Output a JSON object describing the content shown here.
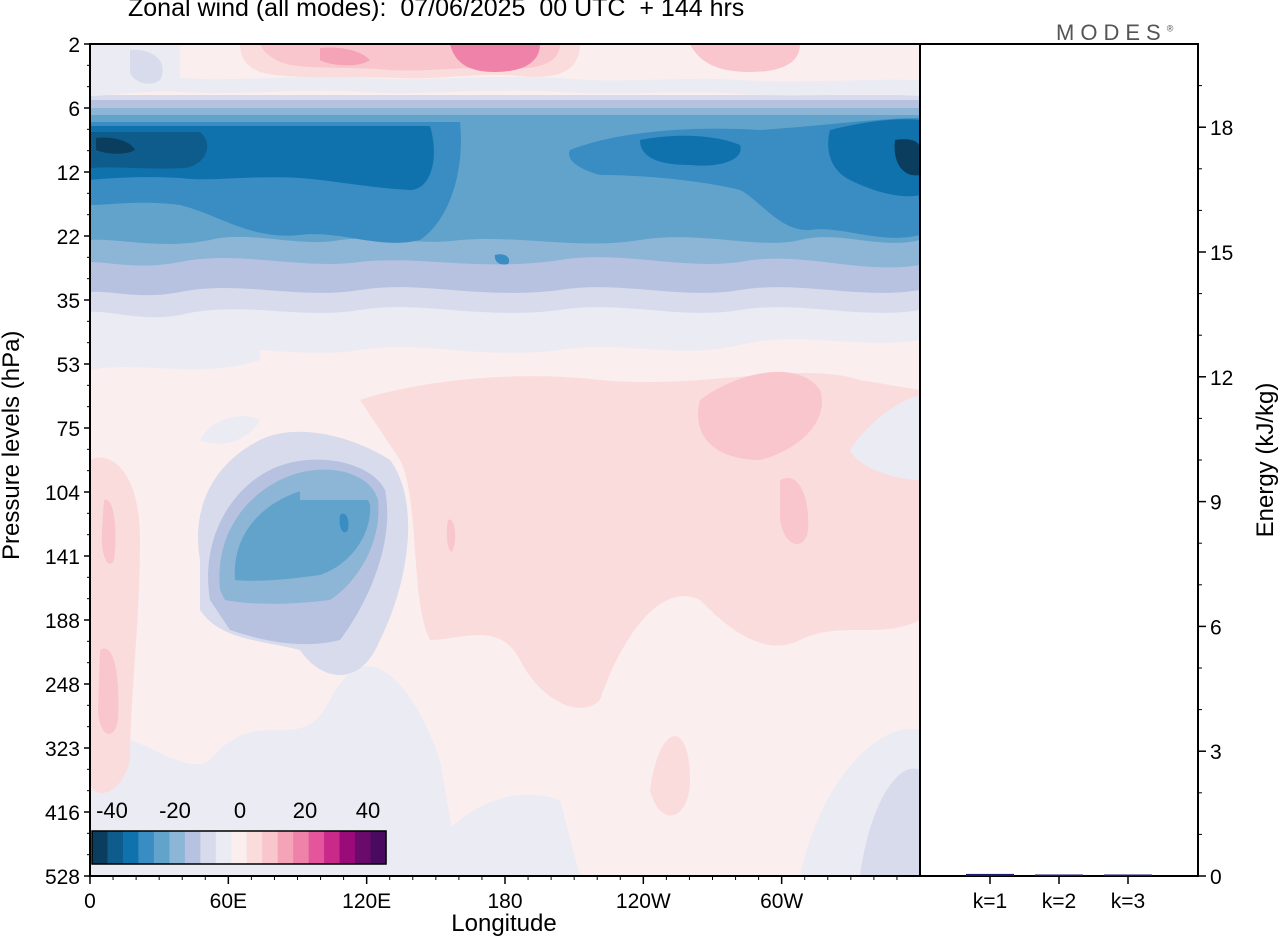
{
  "title": "Zonal wind (all modes):  07/06/2025  00 UTC  + 144 hrs",
  "brand": "MODES",
  "brand_mark": "®",
  "chart_data": [
    {
      "type": "heatmap",
      "title": "Zonal wind (all modes):  07/06/2025  00 UTC  + 144 hrs",
      "xlabel": "Longitude",
      "ylabel": "Pressure levels (hPa)",
      "x_ticks": [
        "0",
        "60E",
        "120E",
        "180",
        "120W",
        "60W"
      ],
      "x_range_deg": [
        0,
        360
      ],
      "y_ticks": [
        "2",
        "6",
        "12",
        "22",
        "35",
        "53",
        "75",
        "104",
        "141",
        "188",
        "248",
        "323",
        "416",
        "528"
      ],
      "colorbar": {
        "tick_labels": [
          "-40",
          "-20",
          "0",
          "20",
          "40"
        ],
        "colors": [
          "#0b3d5e",
          "#0d5c8c",
          "#0f72ad",
          "#3a8dc2",
          "#62a3cc",
          "#8db5d6",
          "#b6c2e0",
          "#d7dbec",
          "#ebebf4",
          "#fbeeee",
          "#fbdcdc",
          "#f8c6cc",
          "#f4a4b6",
          "#ee82a8",
          "#e4559c",
          "#c92a8a",
          "#9a0a78",
          "#6a0a6a",
          "#4a0a5e"
        ]
      },
      "regions": [
        {
          "level_band": "2-6",
          "description": "weak easterly/westerly mix",
          "value": 10
        },
        {
          "level_band": "6-22",
          "description": "strong easterlies",
          "value": -35
        },
        {
          "level_band": "22-35",
          "description": "easterlies",
          "value": -20
        },
        {
          "level_band": "53-104",
          "description": "weak westerlies 180-60W",
          "value": 10
        },
        {
          "level_band": "104-188",
          "description": "easterly core near 70E-110E",
          "value": -25
        }
      ]
    },
    {
      "type": "bar",
      "categories": [
        "k=1",
        "k=2",
        "k=3"
      ],
      "values": [
        0.05,
        0.02,
        0.02
      ],
      "ylabel": "Energy (kJ/kg)",
      "ylim": [
        0,
        20
      ],
      "y_ticks": [
        "0",
        "3",
        "6",
        "9",
        "12",
        "15",
        "18"
      ],
      "bar_color": "#1a1a6e"
    }
  ]
}
